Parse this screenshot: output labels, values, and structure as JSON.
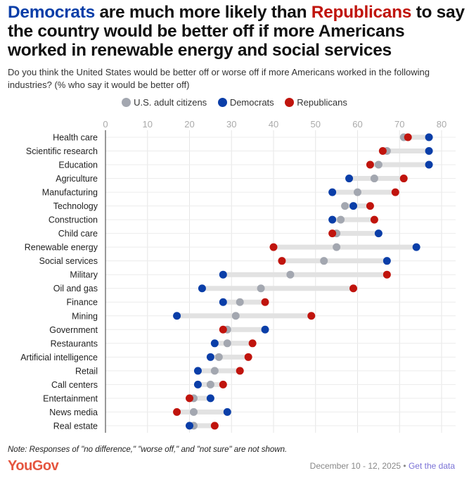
{
  "title": {
    "part1": "Democrats",
    "part2": " are much more likely than ",
    "part3": "Republicans",
    "part4": " to say the country would be better off if more Americans worked in renewable energy and social services"
  },
  "subtitle": "Do you think the United States would be better off or worse off if more Americans worked in the following industries? (% who say it would be better off)",
  "colors": {
    "all": "#a3a7b0",
    "dem": "#0a3ea8",
    "rep": "#c0140d",
    "bar": "#e2e2e2",
    "grid": "#e6e6e6"
  },
  "chart_data": {
    "type": "dot",
    "title": "Democrats are much more likely than Republicans to say the country would be better off if more Americans worked in renewable energy and social services",
    "xlabel": "",
    "ylabel": "",
    "xlim": [
      0,
      80
    ],
    "xticks": [
      0,
      10,
      20,
      30,
      40,
      50,
      60,
      70,
      80
    ],
    "grid": true,
    "legend_position": "top-center",
    "legend": [
      "U.S. adult citizens",
      "Democrats",
      "Republicans"
    ],
    "categories": [
      "Health care",
      "Scientific research",
      "Education",
      "Agriculture",
      "Manufacturing",
      "Technology",
      "Construction",
      "Child care",
      "Renewable energy",
      "Social services",
      "Military",
      "Oil and gas",
      "Finance",
      "Mining",
      "Government",
      "Restaurants",
      "Artificial intelligence",
      "Retail",
      "Call centers",
      "Entertainment",
      "News media",
      "Real estate"
    ],
    "series": [
      {
        "name": "U.S. adult citizens",
        "values": [
          71,
          67,
          65,
          64,
          60,
          57,
          56,
          55,
          55,
          52,
          44,
          37,
          32,
          31,
          29,
          29,
          27,
          26,
          25,
          21,
          21,
          21
        ]
      },
      {
        "name": "Democrats",
        "values": [
          77,
          77,
          77,
          58,
          54,
          59,
          54,
          65,
          74,
          67,
          28,
          23,
          28,
          17,
          38,
          26,
          25,
          22,
          22,
          25,
          29,
          20
        ]
      },
      {
        "name": "Republicans",
        "values": [
          72,
          66,
          63,
          71,
          69,
          63,
          64,
          54,
          40,
          42,
          67,
          59,
          38,
          49,
          28,
          35,
          34,
          32,
          28,
          20,
          17,
          26
        ]
      }
    ]
  },
  "footer": {
    "note": "Note: Responses of \"no difference,\" \"worse off,\" and \"not sure\" are not shown.",
    "logo": "YouGov",
    "date": "December 10 - 12, 2025",
    "sep": " • ",
    "link": "Get the data"
  }
}
